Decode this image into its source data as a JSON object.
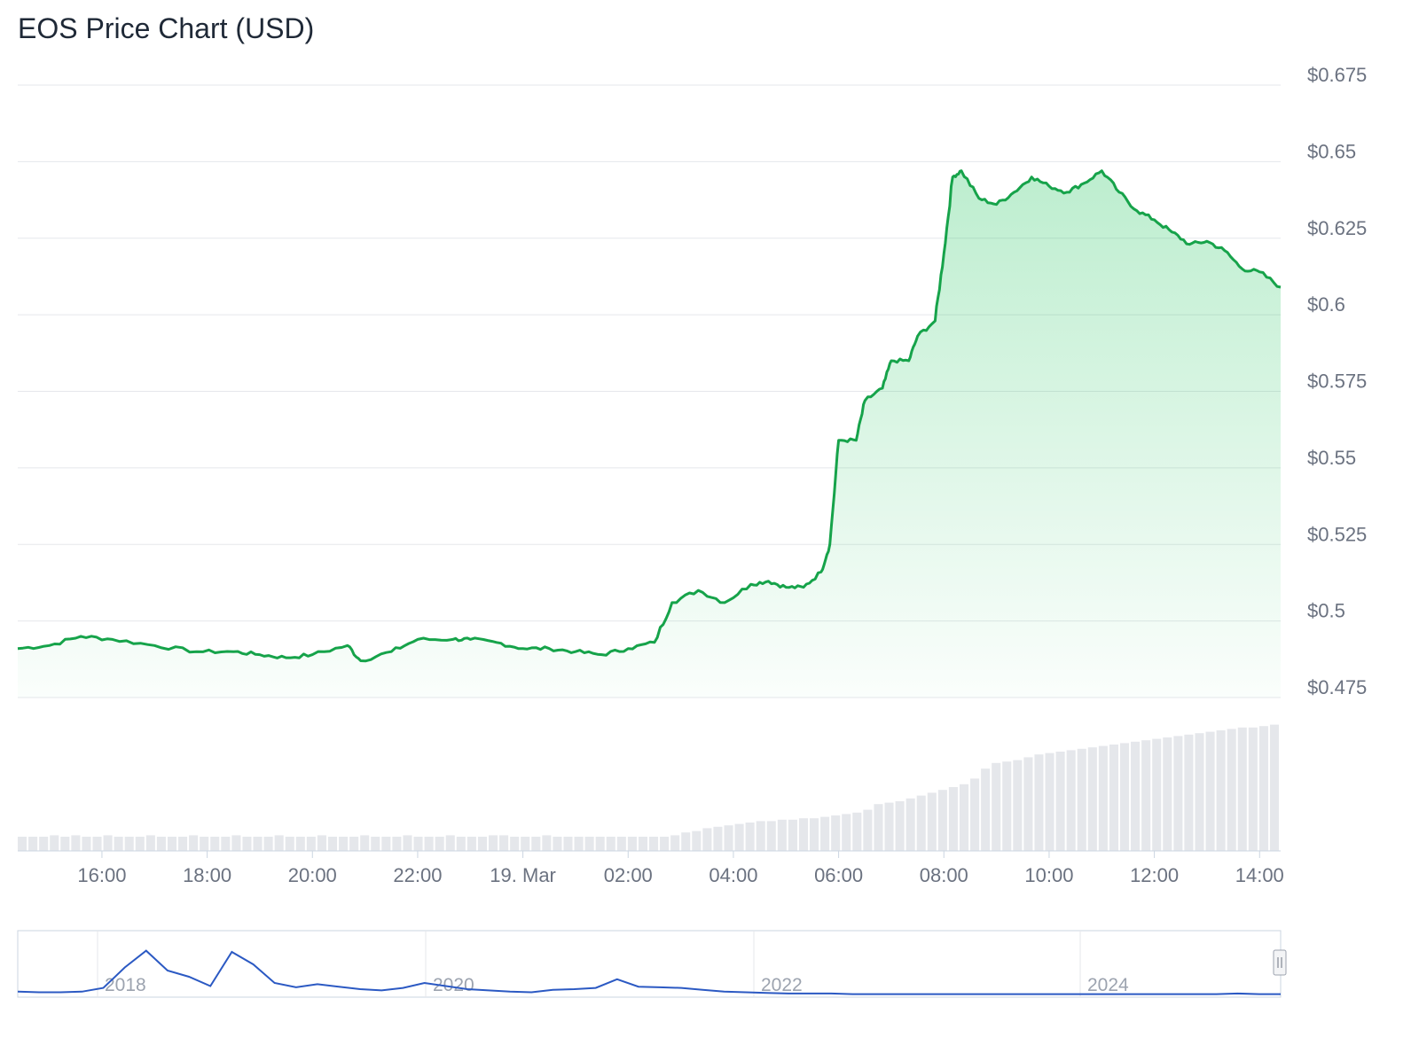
{
  "chart_data": {
    "type": "line",
    "title": "EOS Price Chart (USD)",
    "xlabel": "",
    "ylabel": "",
    "x_range": [
      "18. Mar 14:24",
      "19. Mar 14:24"
    ],
    "ylim": [
      0.475,
      0.675
    ],
    "y_ticks": [
      "$0.675",
      "$0.65",
      "$0.625",
      "$0.6",
      "$0.575",
      "$0.55",
      "$0.525",
      "$0.5",
      "$0.475"
    ],
    "x_ticks": [
      "16:00",
      "18:00",
      "20:00",
      "22:00",
      "19. Mar",
      "02:00",
      "04:00",
      "06:00",
      "08:00",
      "10:00",
      "12:00",
      "14:00"
    ],
    "grid": true,
    "line_color": "#16a34a",
    "fill_color": "#22c55e",
    "series": [
      {
        "points": [
          [
            "14:24",
            0.491
          ],
          [
            "15:00",
            0.492
          ],
          [
            "15:36",
            0.495
          ],
          [
            "16:12",
            0.494
          ],
          [
            "17:00",
            0.492
          ],
          [
            "17:48",
            0.49
          ],
          [
            "18:30",
            0.49
          ],
          [
            "19:00",
            0.489
          ],
          [
            "19:30",
            0.488
          ],
          [
            "20:00",
            0.489
          ],
          [
            "20:40",
            0.492
          ],
          [
            "20:55",
            0.487
          ],
          [
            "21:30",
            0.49
          ],
          [
            "22:00",
            0.494
          ],
          [
            "22:40",
            0.494
          ],
          [
            "23:00",
            0.494
          ],
          [
            "23:30",
            0.493
          ],
          [
            "00:00",
            0.491
          ],
          [
            "00:30",
            0.491
          ],
          [
            "01:00",
            0.49
          ],
          [
            "01:30",
            0.489
          ],
          [
            "02:00",
            0.491
          ],
          [
            "02:30",
            0.493
          ],
          [
            "02:50",
            0.506
          ],
          [
            "03:20",
            0.51
          ],
          [
            "03:50",
            0.506
          ],
          [
            "04:20",
            0.512
          ],
          [
            "04:40",
            0.513
          ],
          [
            "05:00",
            0.511
          ],
          [
            "05:20",
            0.511
          ],
          [
            "05:40",
            0.516
          ],
          [
            "05:50",
            0.525
          ],
          [
            "06:00",
            0.559
          ],
          [
            "06:20",
            0.559
          ],
          [
            "06:30",
            0.572
          ],
          [
            "06:50",
            0.576
          ],
          [
            "07:00",
            0.585
          ],
          [
            "07:20",
            0.585
          ],
          [
            "07:30",
            0.593
          ],
          [
            "07:50",
            0.598
          ],
          [
            "08:00",
            0.62
          ],
          [
            "08:10",
            0.645
          ],
          [
            "08:20",
            0.647
          ],
          [
            "08:40",
            0.638
          ],
          [
            "09:00",
            0.636
          ],
          [
            "09:20",
            0.64
          ],
          [
            "09:40",
            0.645
          ],
          [
            "10:00",
            0.642
          ],
          [
            "10:20",
            0.64
          ],
          [
            "10:40",
            0.643
          ],
          [
            "11:00",
            0.647
          ],
          [
            "11:20",
            0.64
          ],
          [
            "11:40",
            0.634
          ],
          [
            "12:00",
            0.631
          ],
          [
            "12:20",
            0.627
          ],
          [
            "12:40",
            0.623
          ],
          [
            "13:00",
            0.624
          ],
          [
            "13:20",
            0.621
          ],
          [
            "13:40",
            0.615
          ],
          [
            "14:00",
            0.614
          ],
          [
            "14:24",
            0.609
          ]
        ]
      }
    ],
    "volume": [
      0.1,
      0.1,
      0.1,
      0.11,
      0.1,
      0.11,
      0.1,
      0.1,
      0.11,
      0.1,
      0.1,
      0.1,
      0.11,
      0.1,
      0.1,
      0.1,
      0.11,
      0.1,
      0.1,
      0.1,
      0.11,
      0.1,
      0.1,
      0.1,
      0.11,
      0.1,
      0.1,
      0.1,
      0.11,
      0.1,
      0.1,
      0.1,
      0.11,
      0.1,
      0.1,
      0.1,
      0.11,
      0.1,
      0.1,
      0.1,
      0.11,
      0.1,
      0.1,
      0.1,
      0.11,
      0.11,
      0.1,
      0.1,
      0.1,
      0.11,
      0.1,
      0.1,
      0.1,
      0.1,
      0.1,
      0.1,
      0.1,
      0.1,
      0.1,
      0.1,
      0.1,
      0.11,
      0.13,
      0.14,
      0.16,
      0.17,
      0.18,
      0.19,
      0.2,
      0.21,
      0.21,
      0.22,
      0.22,
      0.23,
      0.23,
      0.24,
      0.25,
      0.26,
      0.27,
      0.29,
      0.33,
      0.34,
      0.35,
      0.37,
      0.39,
      0.41,
      0.43,
      0.45,
      0.47,
      0.51,
      0.58,
      0.62,
      0.63,
      0.64,
      0.66,
      0.68,
      0.69,
      0.7,
      0.71,
      0.72,
      0.73,
      0.74,
      0.75,
      0.76,
      0.77,
      0.78,
      0.79,
      0.8,
      0.81,
      0.82,
      0.83,
      0.84,
      0.85,
      0.86,
      0.87,
      0.87,
      0.88,
      0.89
    ],
    "navigator": {
      "x_ticks": [
        "2018",
        "2020",
        "2022",
        "2024"
      ],
      "line_color": "#2b59c3",
      "series": [
        0.06,
        0.05,
        0.05,
        0.06,
        0.12,
        0.45,
        0.72,
        0.4,
        0.3,
        0.15,
        0.7,
        0.5,
        0.2,
        0.13,
        0.18,
        0.14,
        0.1,
        0.08,
        0.12,
        0.2,
        0.15,
        0.1,
        0.08,
        0.06,
        0.05,
        0.09,
        0.1,
        0.12,
        0.26,
        0.14,
        0.13,
        0.12,
        0.09,
        0.06,
        0.05,
        0.04,
        0.03,
        0.03,
        0.03,
        0.02,
        0.02,
        0.02,
        0.02,
        0.02,
        0.02,
        0.02,
        0.02,
        0.02,
        0.02,
        0.02,
        0.02,
        0.02,
        0.02,
        0.02,
        0.02,
        0.02,
        0.02,
        0.03,
        0.02,
        0.02
      ]
    }
  }
}
